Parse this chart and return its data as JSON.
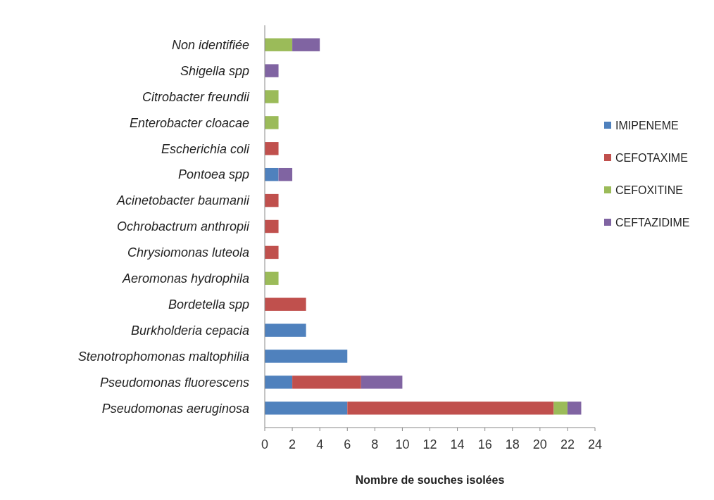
{
  "chart_data": {
    "type": "bar",
    "orientation": "horizontal",
    "stacked": true,
    "xlabel": "Nombre de souches isolées",
    "categories": [
      "Non identifiée",
      "Shigella spp",
      "Citrobacter freundii",
      "Enterobacter cloacae",
      "Escherichia coli",
      "Pontoea spp",
      "Acinetobacter baumanii",
      "Ochrobactrum anthropii",
      "Chrysiomonas luteola",
      "Aeromonas hydrophila",
      "Bordetella spp",
      "Burkholderia cepacia",
      "Stenotrophomonas maltophilia",
      "Pseudomonas fluorescens",
      "Pseudomonas aeruginosa"
    ],
    "series": [
      {
        "name": "IMIPENEME",
        "color": "#4f81bd",
        "values": [
          null,
          null,
          null,
          null,
          null,
          1,
          null,
          null,
          null,
          null,
          null,
          3,
          6,
          2,
          6
        ]
      },
      {
        "name": "CEFOTAXIME",
        "color": "#c0504d",
        "values": [
          null,
          null,
          null,
          null,
          1,
          null,
          1,
          1,
          1,
          null,
          3,
          null,
          null,
          5,
          15
        ]
      },
      {
        "name": "CEFOXITINE",
        "color": "#9bbb59",
        "values": [
          2,
          null,
          1,
          1,
          null,
          null,
          null,
          null,
          null,
          1,
          null,
          null,
          null,
          null,
          1
        ]
      },
      {
        "name": "CEFTAZIDIME",
        "color": "#8064a2",
        "values": [
          2,
          1,
          null,
          null,
          null,
          1,
          null,
          null,
          null,
          null,
          null,
          null,
          null,
          3,
          1
        ]
      }
    ],
    "xlim": [
      0,
      24
    ],
    "xticks": [
      0,
      2,
      4,
      6,
      8,
      10,
      12,
      14,
      16,
      18,
      20,
      22,
      24
    ],
    "legend": "right"
  }
}
